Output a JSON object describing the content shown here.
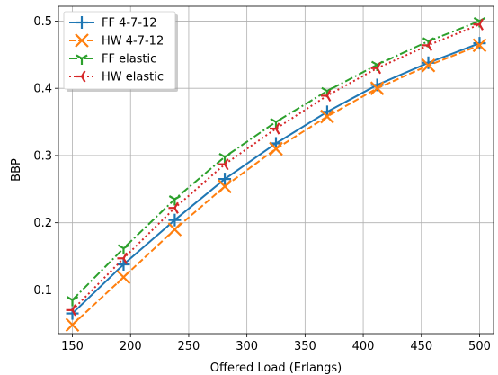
{
  "chart_data": {
    "type": "line",
    "title": "",
    "xlabel": "Offered Load (Erlangs)",
    "ylabel": "BBP",
    "xlim": [
      138,
      512
    ],
    "ylim": [
      0.035,
      0.522
    ],
    "xticks": [
      150,
      200,
      250,
      300,
      350,
      400,
      450,
      500
    ],
    "yticks": [
      0.1,
      0.2,
      0.3,
      0.4,
      0.5
    ],
    "ytick_labels": [
      "0.1",
      "0.2",
      "0.3",
      "0.4",
      "0.5"
    ],
    "grid": true,
    "legend_position": "top-left",
    "x": [
      150,
      194,
      238,
      281,
      325,
      369,
      412,
      456,
      500
    ],
    "series": [
      {
        "name": "FF 4-7-12",
        "color": "#1f77b4",
        "linestyle": "solid",
        "marker": "plus",
        "values": [
          0.065,
          0.138,
          0.204,
          0.265,
          0.318,
          0.365,
          0.405,
          0.438,
          0.467
        ]
      },
      {
        "name": "HW 4-7-12",
        "color": "#ff7f0e",
        "linestyle": "dashed",
        "marker": "x",
        "values": [
          0.048,
          0.119,
          0.19,
          0.254,
          0.31,
          0.358,
          0.4,
          0.434,
          0.464
        ]
      },
      {
        "name": "FF elastic",
        "color": "#2ca02c",
        "linestyle": "dashdot",
        "marker": "tri_down",
        "values": [
          0.085,
          0.162,
          0.235,
          0.298,
          0.35,
          0.396,
          0.435,
          0.47,
          0.5
        ]
      },
      {
        "name": "HW elastic",
        "color": "#d62728",
        "linestyle": "dotted",
        "marker": "tri_right",
        "values": [
          0.07,
          0.147,
          0.222,
          0.287,
          0.34,
          0.389,
          0.43,
          0.464,
          0.495
        ]
      }
    ]
  }
}
